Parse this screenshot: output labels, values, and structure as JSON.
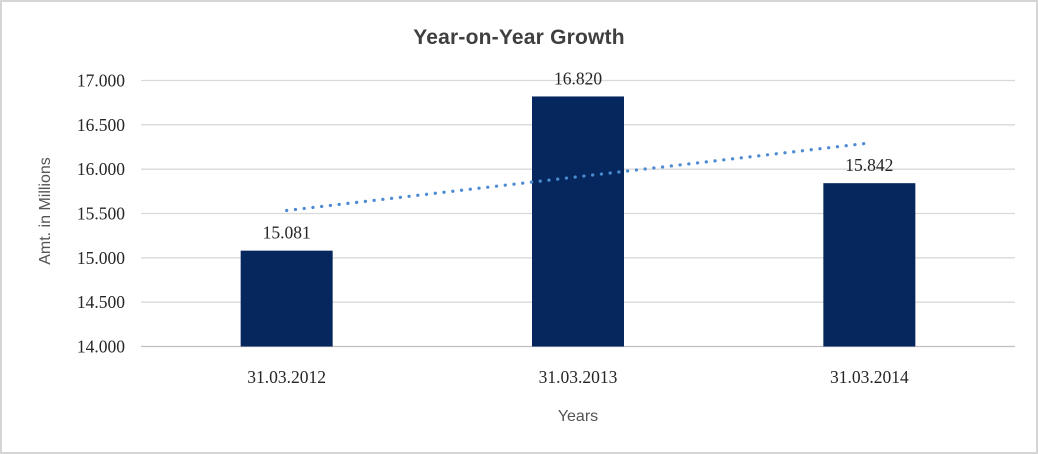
{
  "chart_data": {
    "type": "bar",
    "title": "Year-on-Year Growth",
    "xlabel": "Years",
    "ylabel": "Amt. in Millions",
    "categories": [
      "31.03.2012",
      "31.03.2013",
      "31.03.2014"
    ],
    "values": [
      15081,
      16820,
      15842
    ],
    "data_labels": [
      "15.081",
      "16.820",
      "15.842"
    ],
    "ylim": [
      14000,
      17000
    ],
    "yticks": [
      {
        "value": 14000,
        "label": "14.000"
      },
      {
        "value": 14500,
        "label": "14.500"
      },
      {
        "value": 15000,
        "label": "15.000"
      },
      {
        "value": 15500,
        "label": "15.500"
      },
      {
        "value": 16000,
        "label": "16.000"
      },
      {
        "value": 16500,
        "label": "16.500"
      },
      {
        "value": 17000,
        "label": "17.000"
      }
    ],
    "grid": true,
    "legend": "none",
    "trendline": {
      "type": "linear",
      "style": "dotted",
      "start_value": 15534,
      "end_value": 16295
    }
  },
  "colors": {
    "bar": "#06275d",
    "trendline": "#4c8bd2",
    "gridline": "#d9d9d9",
    "axis_line": "#c0c0c0",
    "title_text": "#3f3f3f",
    "axis_title_text": "#545454",
    "tick_text": "#262626",
    "border": "#d5d5d5",
    "background": "#ffffff"
  }
}
